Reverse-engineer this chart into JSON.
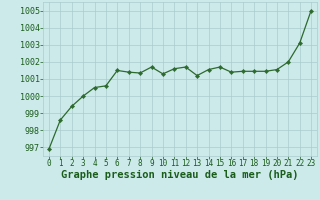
{
  "x": [
    0,
    1,
    2,
    3,
    4,
    5,
    6,
    7,
    8,
    9,
    10,
    11,
    12,
    13,
    14,
    15,
    16,
    17,
    18,
    19,
    20,
    21,
    22,
    23
  ],
  "y": [
    996.9,
    998.6,
    999.4,
    1000.0,
    1000.5,
    1000.6,
    1001.5,
    1001.4,
    1001.35,
    1001.7,
    1001.3,
    1001.6,
    1001.7,
    1001.2,
    1001.55,
    1001.7,
    1001.4,
    1001.45,
    1001.45,
    1001.45,
    1001.55,
    1002.0,
    1003.1,
    1005.0
  ],
  "line_color": "#2d6a2d",
  "marker": "D",
  "marker_size": 2.2,
  "linewidth": 0.9,
  "bg_color": "#cceaea",
  "grid_color": "#aacccc",
  "title": "Graphe pression niveau de la mer (hPa)",
  "title_fontsize": 7.5,
  "title_color": "#1a5c1a",
  "tick_color": "#1a5c1a",
  "ylim": [
    996.5,
    1005.5
  ],
  "yticks": [
    997,
    998,
    999,
    1000,
    1001,
    1002,
    1003,
    1004,
    1005
  ],
  "xlim": [
    -0.5,
    23.5
  ],
  "xticks": [
    0,
    1,
    2,
    3,
    4,
    5,
    6,
    7,
    8,
    9,
    10,
    11,
    12,
    13,
    14,
    15,
    16,
    17,
    18,
    19,
    20,
    21,
    22,
    23
  ],
  "ytick_fontsize": 6.0,
  "xtick_fontsize": 5.5
}
